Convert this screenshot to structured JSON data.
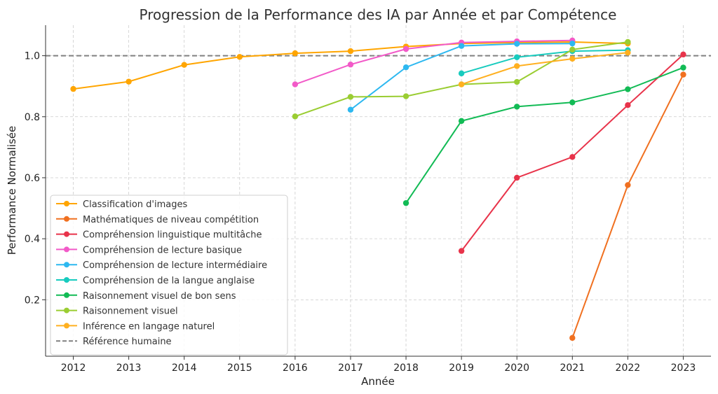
{
  "chart_data": {
    "type": "line",
    "title": "Progression de la Performance des IA par Année et par Compétence",
    "xlabel": "Année",
    "ylabel": "Performance Normalisée",
    "xlim": [
      2011.5,
      2023.5
    ],
    "ylim": [
      0.015,
      1.1
    ],
    "x_ticks": [
      2012,
      2013,
      2014,
      2015,
      2016,
      2017,
      2018,
      2019,
      2020,
      2021,
      2022,
      2023
    ],
    "y_ticks": [
      0.2,
      0.4,
      0.6,
      0.8,
      1.0
    ],
    "y_tick_labels": [
      "0.2",
      "0.4",
      "0.6",
      "0.8",
      "1.0"
    ],
    "grid": true,
    "legend_position": "lower-left",
    "reference_line": {
      "name": "Référence humaine",
      "y": 1.0,
      "color": "#808080",
      "style": "dashed"
    },
    "series": [
      {
        "name": "Classification d'images",
        "color": "#FFA500",
        "x": [
          2012,
          2013,
          2014,
          2015,
          2016,
          2017,
          2018,
          2019,
          2020,
          2021,
          2022
        ],
        "y": [
          0.891,
          0.915,
          0.97,
          0.996,
          1.008,
          1.015,
          1.03,
          1.04,
          1.043,
          1.045,
          1.04
        ]
      },
      {
        "name": "Mathématiques de niveau compétition",
        "color": "#F07020",
        "x": [
          2021,
          2022,
          2023
        ],
        "y": [
          0.075,
          0.576,
          0.938
        ]
      },
      {
        "name": "Compréhension linguistique multitâche",
        "color": "#E8334A",
        "x": [
          2019,
          2020,
          2021,
          2022,
          2023
        ],
        "y": [
          0.36,
          0.6,
          0.668,
          0.838,
          1.004
        ]
      },
      {
        "name": "Compréhension de lecture basique",
        "color": "#F25AC8",
        "x": [
          2016,
          2017,
          2018,
          2019,
          2020,
          2021
        ],
        "y": [
          0.906,
          0.971,
          1.022,
          1.043,
          1.047,
          1.05
        ]
      },
      {
        "name": "Compréhension de lecture intermédiaire",
        "color": "#2DB8F0",
        "x": [
          2017,
          2018,
          2019,
          2020,
          2021
        ],
        "y": [
          0.823,
          0.962,
          1.032,
          1.039,
          1.04
        ]
      },
      {
        "name": "Compréhension de la langue anglaise",
        "color": "#17CBBE",
        "x": [
          2019,
          2020,
          2021,
          2022
        ],
        "y": [
          0.942,
          0.995,
          1.015,
          1.018
        ]
      },
      {
        "name": "Raisonnement visuel de bon sens",
        "color": "#12BB55",
        "x": [
          2018,
          2019,
          2020,
          2021,
          2022,
          2023
        ],
        "y": [
          0.517,
          0.786,
          0.833,
          0.847,
          0.89,
          0.961
        ]
      },
      {
        "name": "Raisonnement visuel",
        "color": "#9ACD32",
        "x": [
          2016,
          2017,
          2018,
          2019,
          2020,
          2021,
          2022
        ],
        "y": [
          0.801,
          0.865,
          0.867,
          0.906,
          0.914,
          1.02,
          1.045
        ]
      },
      {
        "name": "Inférence en langage naturel",
        "color": "#FFB020",
        "x": [
          2019,
          2020,
          2021,
          2022
        ],
        "y": [
          0.906,
          0.966,
          0.99,
          1.01
        ]
      }
    ]
  }
}
